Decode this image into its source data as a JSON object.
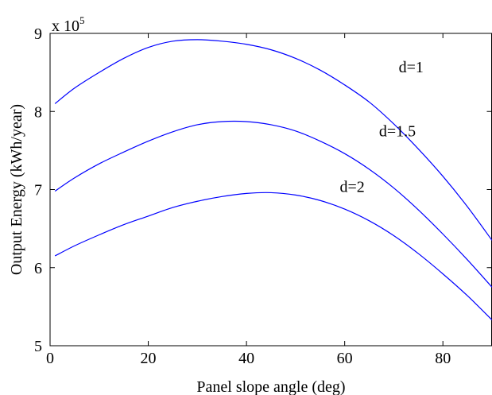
{
  "chart_data": {
    "type": "line",
    "title": "",
    "xlabel": "Panel slope angle (deg)",
    "ylabel": "Output Energy (kWh/year)",
    "xlim": [
      0,
      90
    ],
    "ylim": [
      5,
      9
    ],
    "y_multiplier": "x 10",
    "y_multiplier_exponent": "5",
    "grid": false,
    "legend": "none",
    "xticks": [
      0,
      20,
      40,
      60,
      80
    ],
    "yticks": [
      5,
      6,
      7,
      8,
      9
    ],
    "line_color": "#0000ff",
    "series": [
      {
        "name": "d=1",
        "x": [
          1,
          5,
          10,
          15,
          20,
          25,
          30,
          35,
          40,
          45,
          50,
          55,
          60,
          65,
          70,
          75,
          80,
          85,
          90
        ],
        "y": [
          8.1,
          8.3,
          8.5,
          8.68,
          8.82,
          8.9,
          8.92,
          8.9,
          8.86,
          8.79,
          8.68,
          8.53,
          8.34,
          8.12,
          7.84,
          7.52,
          7.17,
          6.78,
          6.35
        ]
      },
      {
        "name": "d=1.5",
        "x": [
          1,
          5,
          10,
          15,
          20,
          25,
          30,
          35,
          40,
          45,
          50,
          55,
          60,
          65,
          70,
          75,
          80,
          85,
          90
        ],
        "y": [
          6.98,
          7.15,
          7.33,
          7.48,
          7.62,
          7.74,
          7.83,
          7.87,
          7.87,
          7.83,
          7.75,
          7.62,
          7.46,
          7.26,
          7.02,
          6.74,
          6.43,
          6.1,
          5.75
        ]
      },
      {
        "name": "d=2",
        "x": [
          1,
          5,
          10,
          15,
          20,
          25,
          30,
          35,
          40,
          45,
          50,
          55,
          60,
          65,
          70,
          75,
          80,
          85,
          90
        ],
        "y": [
          6.15,
          6.28,
          6.42,
          6.55,
          6.66,
          6.77,
          6.85,
          6.91,
          6.95,
          6.96,
          6.93,
          6.86,
          6.75,
          6.6,
          6.41,
          6.18,
          5.92,
          5.64,
          5.33
        ]
      }
    ],
    "annotations": [
      {
        "text": "d=1",
        "x": 71,
        "y": 8.5
      },
      {
        "text": "d=1.5",
        "x": 67,
        "y": 7.68
      },
      {
        "text": "d=2",
        "x": 59,
        "y": 6.97
      }
    ]
  }
}
